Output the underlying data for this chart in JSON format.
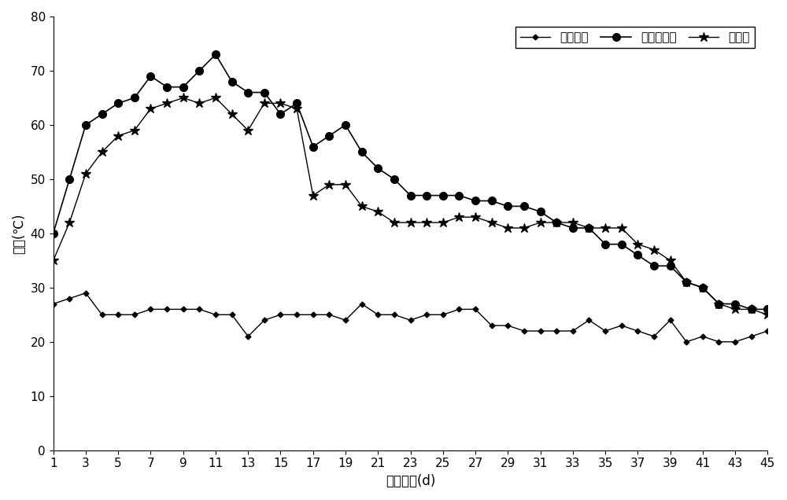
{
  "days": [
    1,
    2,
    3,
    4,
    5,
    6,
    7,
    8,
    9,
    10,
    11,
    12,
    13,
    14,
    15,
    16,
    17,
    18,
    19,
    20,
    21,
    22,
    23,
    24,
    25,
    26,
    27,
    28,
    29,
    30,
    31,
    32,
    33,
    34,
    35,
    36,
    37,
    38,
    39,
    40,
    41,
    42,
    43,
    44,
    45
  ],
  "env_temp": [
    27,
    28,
    29,
    25,
    25,
    25,
    26,
    26,
    26,
    26,
    25,
    25,
    21,
    24,
    25,
    25,
    25,
    25,
    24,
    27,
    25,
    25,
    24,
    25,
    25,
    26,
    26,
    23,
    23,
    22,
    22,
    22,
    22,
    24,
    22,
    23,
    22,
    21,
    24,
    20,
    21,
    20,
    20,
    21,
    22
  ],
  "added_bacteria": [
    40,
    50,
    60,
    62,
    64,
    65,
    69,
    67,
    67,
    70,
    73,
    68,
    66,
    66,
    62,
    64,
    56,
    58,
    60,
    55,
    52,
    50,
    47,
    47,
    47,
    47,
    46,
    46,
    45,
    45,
    44,
    42,
    41,
    41,
    38,
    38,
    36,
    34,
    34,
    31,
    30,
    27,
    27,
    26,
    26
  ],
  "no_bacteria": [
    35,
    42,
    51,
    55,
    58,
    59,
    63,
    64,
    65,
    64,
    65,
    62,
    59,
    64,
    64,
    63,
    47,
    49,
    49,
    45,
    44,
    42,
    42,
    42,
    42,
    43,
    43,
    42,
    41,
    41,
    42,
    42,
    42,
    41,
    41,
    41,
    38,
    37,
    35,
    31,
    30,
    27,
    26,
    26,
    25
  ],
  "x_ticks": [
    1,
    3,
    5,
    7,
    9,
    11,
    13,
    15,
    17,
    19,
    21,
    23,
    25,
    27,
    29,
    31,
    33,
    35,
    37,
    39,
    41,
    43,
    45
  ],
  "xlabel": "堆肖时间(d)",
  "ylabel": "温度(℃)",
  "ylim": [
    0,
    80
  ],
  "yticks": [
    0,
    10,
    20,
    30,
    40,
    50,
    60,
    70,
    80
  ],
  "legend_labels": [
    "环境温度",
    "加复合菌剂",
    "未加菌"
  ],
  "line_color": "#000000",
  "bg_color": "#ffffff",
  "axis_fontsize": 12,
  "tick_fontsize": 11,
  "legend_fontsize": 11
}
